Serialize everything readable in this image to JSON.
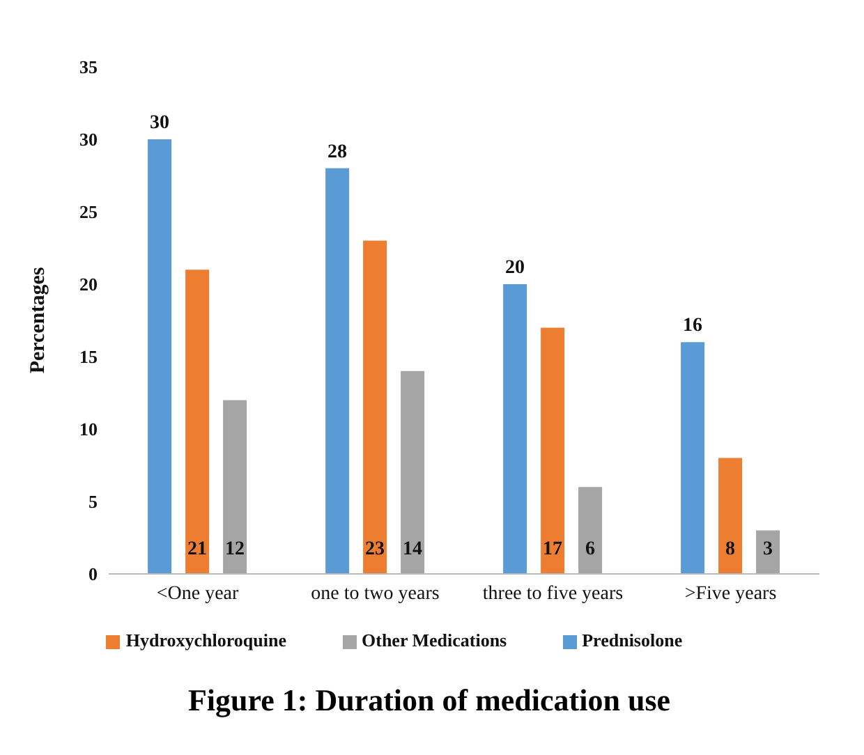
{
  "chart_data": {
    "type": "bar",
    "title": "Figure 1: Duration of medication use",
    "ylabel": "Percentages",
    "categories": [
      "<One year",
      "one to two years",
      "three to five years",
      ">Five years"
    ],
    "series": [
      {
        "name": "Prednisolone",
        "color": "#5b9bd5",
        "values": [
          30,
          28,
          20,
          16
        ]
      },
      {
        "name": "Hydroxychloroquine",
        "color": "#ed7d31",
        "values": [
          21,
          23,
          17,
          8
        ]
      },
      {
        "name": "Other Medications",
        "color": "#a5a5a5",
        "values": [
          12,
          14,
          6,
          3
        ]
      }
    ],
    "ylim": [
      0,
      35
    ],
    "yticks": [
      0,
      5,
      10,
      15,
      20,
      25,
      30,
      35
    ],
    "grid": false,
    "legend": "bottom",
    "data_labels": true
  }
}
